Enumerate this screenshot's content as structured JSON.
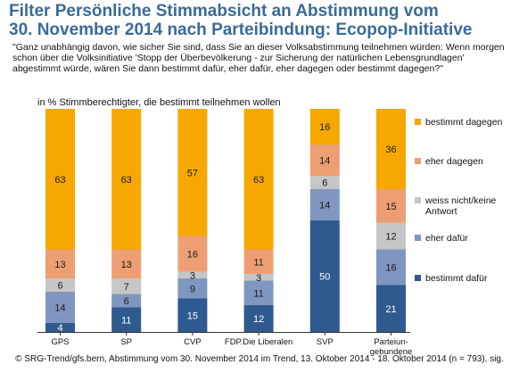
{
  "header": {
    "title_line1": "Filter Persönliche Stimmabsicht an Abstimmung vom",
    "title_line2": "30. November 2014 nach Parteibindung: Ecopop-Initiative",
    "question": "\"Ganz unabhängig davon, wie sicher Sie sind, dass Sie an dieser Volksabstimmung teilnehmen würden: Wenn morgen schon über die Volksinitiative 'Stopp der Überbevölkerung - zur Sicherung der natürlichen Lebensgrundlagen' abgestimmt würde, wären Sie dann bestimmt dafür, eher dafür, eher dagegen oder bestimmt dagegen?\"",
    "subtitle": "in % Stimmberechtigter, die bestimmt teilnehmen wollen"
  },
  "footer": "© SRG-Trend/gfs.bern, Abstimmung vom 30. November 2014 im Trend, 13. Oktober 2014 - 18. Oktober 2014 (n = 793), sig.",
  "colors": {
    "bestimmt_dafuer": "#2e5a8f",
    "eher_dafuer": "#7f97c0",
    "weiss_nicht": "#c6c6c6",
    "eher_dagegen": "#ed9f73",
    "bestimmt_dagegen": "#f6a800"
  },
  "chart_data": {
    "type": "bar",
    "stacked": true,
    "orientation": "vertical",
    "unit": "%",
    "ylim": [
      0,
      100
    ],
    "grid": false,
    "legend_position": "right",
    "categories": [
      "GPS",
      "SP",
      "CVP",
      "FDP.Die Liberalen",
      "SVP",
      "Parteiun-\ngebundene"
    ],
    "series": [
      {
        "key": "bestimmt_dafuer",
        "name": "bestimmt dafür",
        "values": [
          4,
          11,
          15,
          12,
          50,
          21
        ]
      },
      {
        "key": "eher_dafuer",
        "name": "eher dafür",
        "values": [
          14,
          6,
          9,
          11,
          14,
          16
        ]
      },
      {
        "key": "weiss_nicht",
        "name": "weiss nicht/keine Antwort",
        "values": [
          6,
          7,
          3,
          3,
          6,
          12
        ]
      },
      {
        "key": "eher_dagegen",
        "name": "eher dagegen",
        "values": [
          13,
          13,
          16,
          11,
          14,
          15
        ]
      },
      {
        "key": "bestimmt_dagegen",
        "name": "bestimmt dagegen",
        "values": [
          63,
          63,
          57,
          63,
          16,
          36
        ]
      }
    ],
    "legend_order": [
      "bestimmt_dagegen",
      "eher_dagegen",
      "weiss_nicht",
      "eher_dafuer",
      "bestimmt_dafuer"
    ]
  }
}
